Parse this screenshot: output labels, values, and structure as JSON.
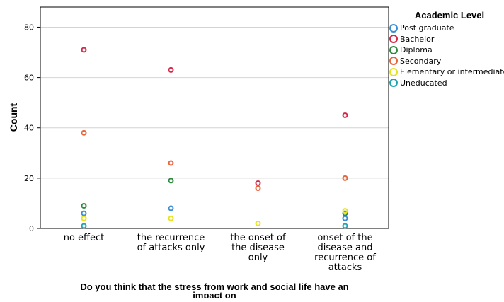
{
  "chart_data": {
    "type": "scatter",
    "title": "",
    "xlabel": "Do you think that the stress from work and social life have an impact on",
    "ylabel": "Count",
    "ylim": [
      0,
      88
    ],
    "yticks": [
      0,
      20,
      40,
      60,
      80
    ],
    "grid": true,
    "legend_position": "right",
    "legend_title": "Academic Level",
    "categories": [
      "no effect",
      "the recurrence of attacks only",
      "the onset of the disease only",
      "onset of the disease and recurrence of attacks"
    ],
    "series": [
      {
        "name": "Post graduate",
        "color": "#3b8ed3",
        "values": [
          6,
          8,
          null,
          4
        ]
      },
      {
        "name": "Bachelor",
        "color": "#d42a4a",
        "values": [
          71,
          63,
          18,
          45
        ]
      },
      {
        "name": "Diploma",
        "color": "#2e8b3e",
        "values": [
          9,
          19,
          null,
          6
        ]
      },
      {
        "name": "Secondary",
        "color": "#e8663d",
        "values": [
          38,
          26,
          16,
          20
        ]
      },
      {
        "name": "Elementary or intermediate",
        "color": "#e8e41c",
        "values": [
          4,
          4,
          2,
          7
        ]
      },
      {
        "name": "Uneducated",
        "color": "#1aa6b5",
        "values": [
          1,
          null,
          null,
          1
        ]
      }
    ]
  }
}
